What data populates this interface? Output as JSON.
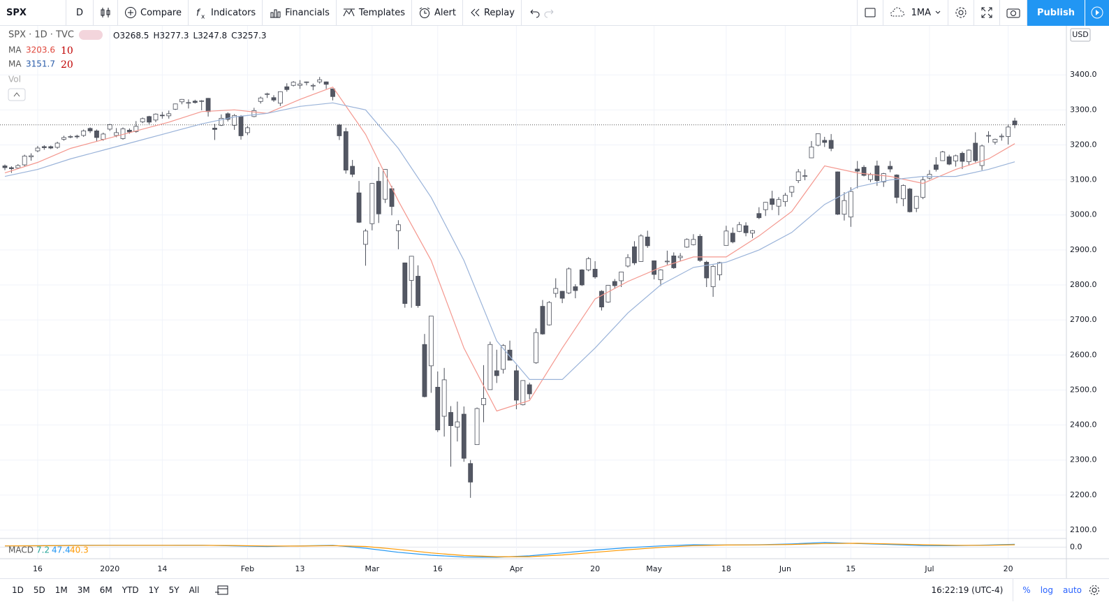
{
  "toolbar": {
    "symbol": "SPX",
    "interval": "D",
    "buttons": [
      "Compare",
      "Indicators",
      "Financials",
      "Templates",
      "Alert",
      "Replay"
    ],
    "layout": "1MA",
    "publish": "Publish"
  },
  "chart_data": {
    "type": "candlestick",
    "symbol_line": "SPX · 1D · TVC",
    "ohlc_prefixes": [
      "O",
      "H",
      "L",
      "C"
    ],
    "categories": [
      null,
      null,
      null,
      null,
      null,
      "16",
      null,
      null,
      null,
      null,
      null,
      null,
      null,
      null,
      null,
      null,
      "2020",
      null,
      null,
      null,
      null,
      null,
      null,
      null,
      "14",
      null,
      null,
      null,
      null,
      null,
      null,
      null,
      null,
      null,
      null,
      null,
      null,
      "Feb",
      null,
      null,
      null,
      null,
      null,
      null,
      null,
      "13",
      null,
      null,
      null,
      null,
      null,
      null,
      null,
      null,
      null,
      null,
      "Mar",
      null,
      null,
      null,
      null,
      null,
      null,
      null,
      null,
      null,
      "16",
      null,
      null,
      null,
      null,
      null,
      null,
      null,
      null,
      null,
      null,
      null,
      "Apr",
      null,
      null,
      null,
      null,
      null,
      null,
      null,
      null,
      null,
      null,
      null,
      "20",
      null,
      null,
      null,
      null,
      null,
      null,
      null,
      null,
      "May",
      null,
      null,
      null,
      null,
      null,
      null,
      null,
      null,
      null,
      null,
      "18",
      null,
      null,
      null,
      null,
      null,
      null,
      null,
      null,
      "Jun",
      null,
      null,
      null,
      null,
      null,
      null,
      null,
      null,
      null,
      "15",
      null,
      null,
      null,
      null,
      null,
      null,
      null,
      null,
      null,
      null,
      null,
      "Jul",
      null,
      null,
      null,
      null,
      null,
      null,
      null,
      null,
      null,
      null,
      null,
      "20",
      null
    ],
    "ohlc": {
      "open": [
        3140,
        3135,
        3134,
        3143,
        3166,
        3183,
        3195,
        3195,
        3193,
        3216,
        3223,
        3225,
        3227,
        3247,
        3240,
        3216,
        3245,
        3227,
        3218,
        3242,
        3238,
        3266,
        3281,
        3271,
        3285,
        3283,
        3302,
        3323,
        3320,
        3325,
        3325,
        3333,
        3248,
        3256,
        3289,
        3256,
        3282,
        3235,
        3281,
        3324,
        3344,
        3335,
        3319,
        3366,
        3370,
        3370,
        3378,
        3369,
        3380,
        3380,
        3360,
        3257,
        3238,
        3139,
        3063,
        2916,
        2975,
        3096,
        3045,
        3075,
        2955,
        2863,
        2813,
        2825,
        2630,
        2569,
        2508,
        2425,
        2436,
        2394,
        2431,
        2290,
        2344,
        2458,
        2501,
        2555,
        2559,
        2614,
        2555,
        2458,
        2515,
        2578,
        2739,
        2686,
        2776,
        2782,
        2777,
        2795,
        2843,
        2843,
        2845,
        2782,
        2751,
        2810,
        2812,
        2854,
        2909,
        2867,
        2937,
        2869,
        2815,
        2868,
        2883,
        2878,
        2908,
        2915,
        2939,
        2865,
        2795,
        2829,
        2913,
        2948,
        2953,
        2969,
        2948,
        3004,
        3015,
        3046,
        3025,
        3038,
        3065,
        3098,
        3111,
        3163,
        3199,
        3213,
        3213,
        3123,
        3002,
        2994,
        3131,
        3136,
        3101,
        3140,
        3094,
        3139,
        3114,
        3046,
        3074,
        3019,
        3050,
        3105,
        3143,
        3155,
        3166,
        3154,
        3176,
        3152,
        3205,
        3141,
        3226,
        3208,
        3224,
        3224,
        3268.5
      ],
      "high": [
        3144,
        3139,
        3145,
        3172,
        3176,
        3197,
        3199,
        3198,
        3209,
        3226,
        3228,
        3229,
        3244,
        3250,
        3244,
        3235,
        3260,
        3248,
        3250,
        3247,
        3268,
        3278,
        3283,
        3290,
        3294,
        3298,
        3318,
        3331,
        3330,
        3329,
        3328,
        3334,
        3260,
        3287,
        3293,
        3288,
        3285,
        3254,
        3306,
        3338,
        3349,
        3342,
        3353,
        3376,
        3382,
        3385,
        3381,
        3375,
        3394,
        3381,
        3361,
        3260,
        3249,
        3157,
        3097,
        2960,
        3091,
        3137,
        3131,
        3083,
        2985,
        2864,
        2883,
        2856,
        2660,
        2711,
        2553,
        2563,
        2454,
        2467,
        2453,
        2300,
        2450,
        2571,
        2638,
        2615,
        2631,
        2641,
        2571,
        2528,
        2521,
        2676,
        2757,
        2754,
        2819,
        2783,
        2850,
        2802,
        2845,
        2880,
        2868,
        2785,
        2800,
        2817,
        2838,
        2888,
        2925,
        2945,
        2955,
        2870,
        2845,
        2898,
        2893,
        2891,
        2933,
        2945,
        2945,
        2869,
        2857,
        2866,
        2969,
        2964,
        2980,
        2979,
        2957,
        3022,
        3037,
        3069,
        3051,
        3063,
        3082,
        3131,
        3130,
        3211,
        3233,
        3223,
        3231,
        3124,
        3065,
        3079,
        3154,
        3142,
        3120,
        3155,
        3120,
        3154,
        3116,
        3087,
        3077,
        3054,
        3111,
        3128,
        3165,
        3183,
        3172,
        3172,
        3181,
        3187,
        3236,
        3201,
        3239,
        3218,
        3232,
        3259,
        3277.3
      ],
      "low": [
        3128,
        3120,
        3131,
        3139,
        3155,
        3179,
        3186,
        3188,
        3189,
        3212,
        3219,
        3218,
        3223,
        3234,
        3210,
        3212,
        3240,
        3222,
        3215,
        3232,
        3235,
        3262,
        3259,
        3265,
        3275,
        3275,
        3300,
        3316,
        3304,
        3318,
        3299,
        3281,
        3214,
        3254,
        3267,
        3243,
        3215,
        3228,
        3279,
        3318,
        3334,
        3323,
        3311,
        3352,
        3367,
        3360,
        3370,
        3356,
        3375,
        3360,
        3327,
        3214,
        3118,
        3108,
        2977,
        2855,
        2956,
        2977,
        3034,
        2999,
        2902,
        2735,
        2735,
        2735,
        2479,
        2492,
        2380,
        2367,
        2281,
        2353,
        2295,
        2192,
        2345,
        2408,
        2501,
        2520,
        2547,
        2585,
        2445,
        2456,
        2474,
        2575,
        2658,
        2684,
        2764,
        2748,
        2774,
        2762,
        2797,
        2839,
        2818,
        2727,
        2749,
        2791,
        2794,
        2850,
        2857,
        2866,
        2906,
        2816,
        2797,
        2858,
        2846,
        2868,
        2906,
        2913,
        2866,
        2794,
        2766,
        2813,
        2913,
        2919,
        2951,
        2939,
        2934,
        2988,
        2997,
        3014,
        2999,
        3024,
        3051,
        3091,
        3099,
        3162,
        3196,
        3194,
        3182,
        3000,
        2984,
        2966,
        3076,
        3110,
        3094,
        3083,
        3080,
        3122,
        3033,
        3025,
        3007,
        3008,
        3045,
        3101,
        3124,
        3155,
        3142,
        3138,
        3131,
        3141,
        3150,
        3128,
        3206,
        3201,
        3212,
        3201,
        3247.8
      ],
      "close": [
        3135,
        3132,
        3141,
        3168,
        3169,
        3191,
        3192,
        3191,
        3205,
        3221,
        3224,
        3223,
        3240,
        3240,
        3221,
        3231,
        3258,
        3235,
        3246,
        3237,
        3253,
        3275,
        3265,
        3288,
        3283,
        3289,
        3317,
        3330,
        3321,
        3321,
        3326,
        3295,
        3244,
        3276,
        3273,
        3284,
        3226,
        3249,
        3298,
        3334,
        3346,
        3328,
        3352,
        3358,
        3379,
        3374,
        3380,
        3370,
        3386,
        3373,
        3338,
        3226,
        3128,
        3116,
        2979,
        2954,
        3090,
        3003,
        3130,
        3024,
        2972,
        2747,
        2882,
        2741,
        2481,
        2711,
        2386,
        2529,
        2398,
        2409,
        2305,
        2237,
        2447,
        2476,
        2630,
        2541,
        2627,
        2585,
        2471,
        2527,
        2489,
        2664,
        2660,
        2750,
        2790,
        2762,
        2846,
        2784,
        2800,
        2875,
        2823,
        2737,
        2799,
        2798,
        2837,
        2878,
        2863,
        2940,
        2912,
        2830,
        2843,
        2868,
        2849,
        2882,
        2930,
        2930,
        2870,
        2820,
        2853,
        2864,
        2954,
        2923,
        2972,
        2949,
        2955,
        2992,
        3036,
        3030,
        3044,
        3056,
        3081,
        3123,
        3112,
        3194,
        3232,
        3207,
        3190,
        3002,
        3041,
        3067,
        3125,
        3113,
        3115,
        3098,
        3118,
        3131,
        3050,
        3084,
        3009,
        3053,
        3100,
        3116,
        3130,
        3180,
        3145,
        3169,
        3153,
        3185,
        3155,
        3197,
        3227,
        3216,
        3225,
        3251,
        3257.3
      ],
      "up_color": "#ffffff",
      "down_color": "#535763",
      "border_color": "#4a4e59"
    },
    "lines": [
      {
        "name": "MA",
        "period": 10,
        "color": "#f4978e",
        "x": [
          0,
          5,
          10,
          15,
          20,
          25,
          30,
          35,
          40,
          45,
          50,
          55,
          60,
          65,
          70,
          75,
          80,
          85,
          90,
          95,
          100,
          105,
          110,
          115,
          120,
          125,
          130,
          135,
          140,
          145,
          150,
          154
        ],
        "values": [
          3120,
          3150,
          3190,
          3215,
          3240,
          3265,
          3295,
          3300,
          3290,
          3330,
          3365,
          3230,
          3040,
          2870,
          2620,
          2440,
          2470,
          2620,
          2760,
          2810,
          2850,
          2880,
          2880,
          2940,
          3010,
          3140,
          3120,
          3110,
          3090,
          3130,
          3160,
          3203.6
        ]
      },
      {
        "name": "MA",
        "period": 20,
        "color": "#9ab3d9",
        "x": [
          0,
          5,
          10,
          15,
          20,
          25,
          30,
          35,
          40,
          45,
          50,
          55,
          60,
          65,
          70,
          75,
          80,
          85,
          90,
          95,
          100,
          105,
          110,
          115,
          120,
          125,
          130,
          135,
          140,
          145,
          150,
          154
        ],
        "values": [
          3110,
          3130,
          3160,
          3185,
          3210,
          3235,
          3260,
          3280,
          3290,
          3310,
          3320,
          3300,
          3190,
          3050,
          2870,
          2640,
          2530,
          2530,
          2620,
          2720,
          2800,
          2850,
          2865,
          2900,
          2950,
          3030,
          3080,
          3100,
          3110,
          3110,
          3130,
          3151.7
        ]
      }
    ],
    "volume_label": "Vol",
    "ylim": [
      2078,
      3540
    ],
    "yticks": [
      {
        "value": 2100,
        "label": "2100.0"
      },
      {
        "value": 2200,
        "label": "2200.0"
      },
      {
        "value": 2300,
        "label": "2300.0"
      },
      {
        "value": 2400,
        "label": "2400.0"
      },
      {
        "value": 2500,
        "label": "2500.0"
      },
      {
        "value": 2600,
        "label": "2600.0"
      },
      {
        "value": 2700,
        "label": "2700.0"
      },
      {
        "value": 2800,
        "label": "2800.0"
      },
      {
        "value": 2900,
        "label": "2900.0"
      },
      {
        "value": 3000,
        "label": "3000.0"
      },
      {
        "value": 3100,
        "label": "3100.0"
      },
      {
        "value": 3200,
        "label": "3200.0"
      },
      {
        "value": 3300,
        "label": "3300.0"
      },
      {
        "value": 3400,
        "label": "3400.0"
      }
    ],
    "grid": true,
    "currency": "USD",
    "macd": {
      "name": "MACD",
      "histogram": 7.2,
      "macd_color": "#2196f3",
      "signal_color": "#ff9800",
      "histogram_color": "#26a69a",
      "x": [
        0,
        5,
        10,
        15,
        20,
        25,
        30,
        35,
        40,
        45,
        50,
        55,
        60,
        65,
        70,
        75,
        80,
        85,
        90,
        95,
        100,
        105,
        110,
        115,
        120,
        125,
        130,
        135,
        140,
        145,
        150,
        154
      ],
      "macd": [
        20,
        25,
        30,
        32,
        30,
        30,
        32,
        20,
        10,
        20,
        30,
        -20,
        -90,
        -140,
        -170,
        -175,
        -150,
        -100,
        -50,
        -10,
        20,
        40,
        35,
        40,
        55,
        80,
        60,
        45,
        25,
        25,
        35,
        47.4
      ],
      "signal": [
        20,
        22,
        27,
        30,
        31,
        30,
        31,
        27,
        18,
        17,
        24,
        10,
        -40,
        -100,
        -145,
        -165,
        -165,
        -135,
        -90,
        -45,
        -5,
        25,
        35,
        38,
        45,
        60,
        65,
        55,
        40,
        30,
        30,
        40.3
      ],
      "ylim": [
        -200,
        100
      ],
      "yticks": [
        {
          "value": 0,
          "label": "0.0"
        }
      ]
    }
  },
  "bottom_bar": {
    "ranges": [
      "1D",
      "5D",
      "1M",
      "3M",
      "6M",
      "YTD",
      "1Y",
      "5Y",
      "All"
    ],
    "clock": "16:22:19 (UTC-4)",
    "options": [
      "%",
      "log",
      "auto"
    ]
  }
}
